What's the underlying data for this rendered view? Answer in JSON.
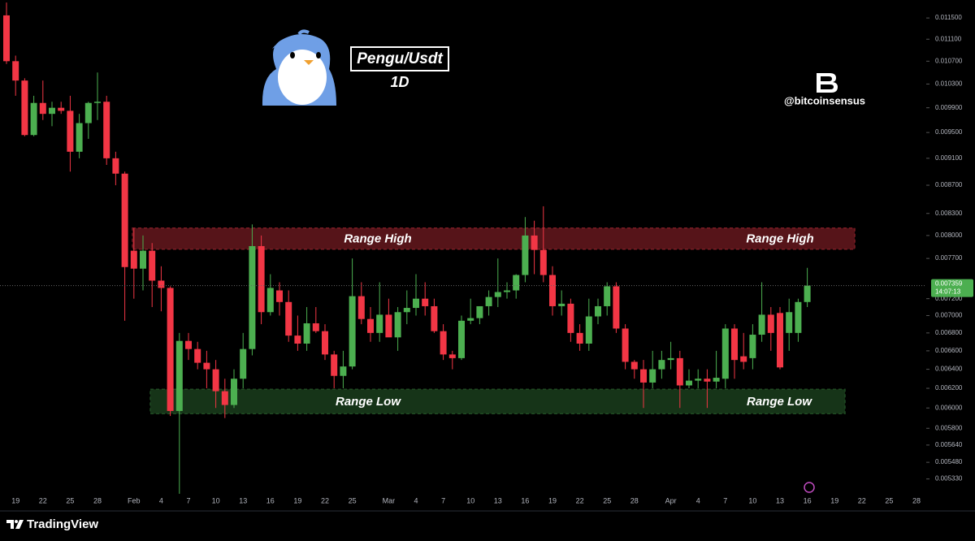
{
  "chart_data": {
    "type": "candlestick",
    "title": "Pengu/Usdt",
    "subtitle": "1D",
    "source_handle": "@bitcoinsensus",
    "log_scale": true,
    "grid": false,
    "up_color": "#4caf50",
    "down_color": "#f23645",
    "ylim": [
      0.00522,
      0.01185
    ],
    "yticks": [
      {
        "value": 0.0115,
        "label": "0.011500"
      },
      {
        "value": 0.0111,
        "label": "0.011100"
      },
      {
        "value": 0.0107,
        "label": "0.010700"
      },
      {
        "value": 0.0103,
        "label": "0.010300"
      },
      {
        "value": 0.0099,
        "label": "0.009900"
      },
      {
        "value": 0.0095,
        "label": "0.009500"
      },
      {
        "value": 0.0091,
        "label": "0.009100"
      },
      {
        "value": 0.0087,
        "label": "0.008700"
      },
      {
        "value": 0.0083,
        "label": "0.008300"
      },
      {
        "value": 0.008,
        "label": "0.008000"
      },
      {
        "value": 0.0077,
        "label": "0.007700"
      },
      {
        "value": 0.0072,
        "label": "0.007200"
      },
      {
        "value": 0.007,
        "label": "0.007000"
      },
      {
        "value": 0.0068,
        "label": "0.006800"
      },
      {
        "value": 0.0066,
        "label": "0.006600"
      },
      {
        "value": 0.0064,
        "label": "0.006400"
      },
      {
        "value": 0.0062,
        "label": "0.006200"
      },
      {
        "value": 0.006,
        "label": "0.006000"
      },
      {
        "value": 0.0058,
        "label": "0.005800"
      },
      {
        "value": 0.00564,
        "label": "0.005640"
      },
      {
        "value": 0.00548,
        "label": "0.005480"
      },
      {
        "value": 0.00533,
        "label": "0.005330"
      }
    ],
    "categories": [
      null,
      "19",
      null,
      null,
      "22",
      null,
      null,
      "25",
      null,
      null,
      "28",
      null,
      null,
      null,
      "Feb",
      null,
      null,
      "4",
      null,
      null,
      "7",
      null,
      null,
      "10",
      null,
      null,
      "13",
      null,
      null,
      "16",
      null,
      null,
      "19",
      null,
      null,
      "22",
      null,
      null,
      "25",
      null,
      null,
      null,
      "Mar",
      null,
      null,
      "4",
      null,
      null,
      "7",
      null,
      null,
      "10",
      null,
      null,
      "13",
      null,
      null,
      "16",
      null,
      null,
      "19",
      null,
      null,
      "22",
      null,
      null,
      "25",
      null,
      null,
      "28",
      null,
      null,
      null,
      "Apr",
      null,
      null,
      "4",
      null,
      null,
      "7",
      null,
      null,
      "10",
      null,
      null,
      "13",
      null,
      null,
      "16",
      null,
      null,
      "19",
      null,
      null,
      "22",
      null,
      null,
      "25",
      null,
      null,
      "28",
      null
    ],
    "open": [
      0.01155,
      0.0107,
      0.01036,
      0.00946,
      0.00998,
      0.0098,
      0.0099,
      0.00985,
      0.0092,
      0.00965,
      0.00998,
      0.01,
      0.0091,
      0.00887,
      0.0078,
      0.00757,
      0.0078,
      0.00742,
      0.00733,
      0.00597,
      0.00671,
      0.00662,
      0.00647,
      0.0064,
      0.00617,
      0.00603,
      0.0063,
      0.00662,
      0.00786,
      0.00704,
      0.0073,
      0.00716,
      0.00677,
      0.00668,
      0.00691,
      0.00682,
      0.00656,
      0.00633,
      0.00643,
      0.00723,
      0.00696,
      0.0068,
      0.00701,
      0.00675,
      0.00704,
      0.00709,
      0.0072,
      0.00711,
      0.00682,
      0.00656,
      0.00652,
      0.00694,
      0.00697,
      0.00711,
      0.00722,
      0.00728,
      0.0073,
      0.00749,
      0.008,
      0.00781,
      0.00749,
      0.00711,
      0.00714,
      0.0068,
      0.00668,
      0.00699,
      0.00711,
      0.00735,
      0.00685,
      0.00648,
      0.0064,
      0.00626,
      0.0064,
      0.0065,
      0.00652,
      0.00623,
      0.00628,
      0.0063,
      0.00627,
      0.0063,
      0.00685,
      0.00654,
      0.00652,
      0.00678,
      0.00701,
      0.00703,
      0.0068,
      0.0068,
      0.00716,
      null,
      null,
      null,
      null,
      null,
      null,
      null,
      null,
      null,
      null,
      null,
      null,
      null
    ],
    "high": [
      0.0118,
      0.0108,
      0.0104,
      0.0101,
      0.01036,
      0.01,
      0.01,
      0.0101,
      0.0098,
      0.01,
      0.0105,
      0.0101,
      0.0092,
      0.0089,
      0.0081,
      0.008,
      0.0079,
      0.0076,
      0.00735,
      0.0068,
      0.0068,
      0.0067,
      0.0066,
      0.0065,
      0.0063,
      0.0064,
      0.0068,
      0.00815,
      0.008,
      0.0075,
      0.0074,
      0.0073,
      0.007,
      0.0071,
      0.0071,
      0.0069,
      0.0066,
      0.0066,
      0.0077,
      0.0074,
      0.0071,
      0.0074,
      0.0072,
      0.0071,
      0.0073,
      0.0075,
      0.0074,
      0.0072,
      0.0069,
      0.0066,
      0.007,
      0.0072,
      0.0071,
      0.0073,
      0.0077,
      0.0074,
      0.0075,
      0.00825,
      0.0082,
      0.0084,
      0.0076,
      0.0073,
      0.0072,
      0.0069,
      0.0072,
      0.0072,
      0.0074,
      0.0074,
      0.0069,
      0.0065,
      0.0065,
      0.0066,
      0.0066,
      0.0067,
      0.0066,
      0.0064,
      0.0064,
      0.0064,
      0.0066,
      0.0069,
      0.0069,
      0.0068,
      0.0069,
      0.0074,
      0.0071,
      0.0071,
      0.0072,
      0.0072,
      0.00758,
      null,
      null,
      null,
      null,
      null,
      null,
      null,
      null,
      null,
      null,
      null,
      null,
      null
    ],
    "low": [
      0.01065,
      0.0101,
      0.00944,
      0.00944,
      0.0097,
      0.0096,
      0.0098,
      0.0089,
      0.0091,
      0.0094,
      0.0097,
      0.009,
      0.0087,
      0.00694,
      0.0072,
      0.0073,
      0.0071,
      0.00705,
      0.00592,
      0.0052,
      0.0065,
      0.0064,
      0.0062,
      0.006,
      0.0059,
      0.006,
      0.0062,
      0.00655,
      0.0069,
      0.007,
      0.007,
      0.0067,
      0.0066,
      0.0066,
      0.0068,
      0.0065,
      0.0062,
      0.0062,
      0.0064,
      0.0069,
      0.0067,
      0.0067,
      0.0068,
      0.0066,
      0.0069,
      0.007,
      0.007,
      0.0068,
      0.0065,
      0.0064,
      0.0065,
      0.0069,
      0.0069,
      0.007,
      0.0071,
      0.0072,
      0.0072,
      0.0074,
      0.0075,
      0.0074,
      0.007,
      0.007,
      0.0067,
      0.0066,
      0.0066,
      0.0069,
      0.007,
      0.0068,
      0.0064,
      0.0063,
      0.006,
      0.0062,
      0.0063,
      0.0064,
      0.006,
      0.0062,
      0.0062,
      0.006,
      0.0062,
      0.0062,
      0.0063,
      0.0064,
      0.0064,
      0.0067,
      0.0066,
      0.0064,
      0.0066,
      0.0067,
      0.0071,
      null,
      null,
      null,
      null,
      null,
      null,
      null,
      null,
      null,
      null,
      null,
      null,
      null
    ],
    "close": [
      0.0107,
      0.01036,
      0.00946,
      0.00998,
      0.0098,
      0.0099,
      0.00985,
      0.0092,
      0.00965,
      0.00998,
      0.01,
      0.0091,
      0.00887,
      0.00759,
      0.00757,
      0.0078,
      0.00742,
      0.00733,
      0.00597,
      0.00671,
      0.00662,
      0.00647,
      0.0064,
      0.00617,
      0.00603,
      0.0063,
      0.00662,
      0.00786,
      0.00704,
      0.00733,
      0.00716,
      0.00677,
      0.00668,
      0.00691,
      0.00682,
      0.00656,
      0.00633,
      0.00643,
      0.00723,
      0.00696,
      0.0068,
      0.00701,
      0.00675,
      0.00704,
      0.00709,
      0.0072,
      0.00711,
      0.00682,
      0.00656,
      0.00652,
      0.00694,
      0.00697,
      0.00711,
      0.00722,
      0.00728,
      0.0073,
      0.00749,
      0.008,
      0.00781,
      0.00749,
      0.00711,
      0.00714,
      0.0068,
      0.00668,
      0.00699,
      0.00711,
      0.00735,
      0.00685,
      0.00648,
      0.0064,
      0.00626,
      0.0064,
      0.0065,
      0.00652,
      0.00623,
      0.00628,
      0.0063,
      0.00627,
      0.00631,
      0.00685,
      0.0065,
      0.00648,
      0.00678,
      0.00701,
      0.0068,
      0.00642,
      0.00704,
      0.00716,
      0.007359,
      null,
      null,
      null,
      null,
      null,
      null,
      null,
      null,
      null,
      null,
      null,
      null,
      null
    ],
    "last_price": {
      "value": 0.007359,
      "label": "0.007359"
    },
    "countdown": "14:07:13",
    "zones": [
      {
        "top": 0.0081,
        "bottom": 0.00782,
        "color": "#7a1c24",
        "labels": [
          "Range High",
          "Range High"
        ]
      },
      {
        "top": 0.00619,
        "bottom": 0.005943,
        "color": "#1f4a22",
        "labels": [
          "Range Low",
          "Range Low"
        ]
      }
    ]
  },
  "footer": {
    "brand": "TradingView"
  }
}
